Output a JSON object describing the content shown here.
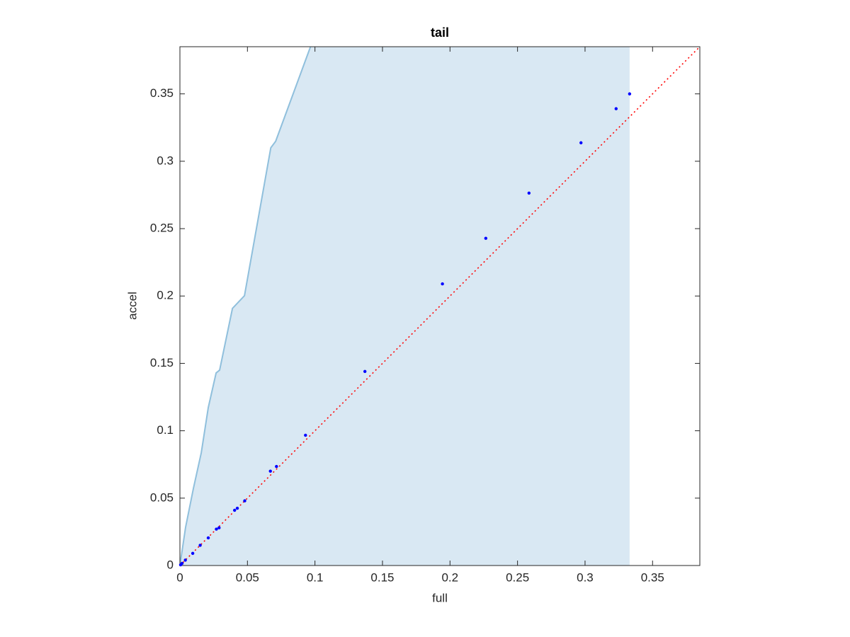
{
  "chart_data": {
    "type": "scatter",
    "title": "tail",
    "x_label": "full",
    "y_label": "accel",
    "xlim": [
      0,
      0.385
    ],
    "ylim": [
      0,
      0.385
    ],
    "xticks": [
      0,
      0.05,
      0.1,
      0.15,
      0.2,
      0.25,
      0.3,
      0.35
    ],
    "yticks": [
      0,
      0.05,
      0.1,
      0.15,
      0.2,
      0.25,
      0.3,
      0.35
    ],
    "grid": false,
    "box": true,
    "series": [
      {
        "color": "#0000ff",
        "x": [
          0.0005,
          0.0016,
          0.004,
          0.0095,
          0.015,
          0.021,
          0.027,
          0.029,
          0.0405,
          0.0425,
          0.048,
          0.067,
          0.0715,
          0.093,
          0.137,
          0.1944,
          0.2265,
          0.2585,
          0.297,
          0.323,
          0.333
        ],
        "values": [
          0.0005,
          0.0016,
          0.004,
          0.009,
          0.015,
          0.0205,
          0.027,
          0.028,
          0.041,
          0.0425,
          0.048,
          0.07,
          0.0735,
          0.0967,
          0.144,
          0.209,
          0.2428,
          0.2764,
          0.3137,
          0.339,
          0.35
        ]
      }
    ],
    "region": {
      "fill": "#d9e8f3",
      "edge_color": "#8fbfdc",
      "x": [
        0,
        0.0042,
        0.01,
        0.0158,
        0.021,
        0.0268,
        0.0294,
        0.0389,
        0.0478,
        0.0673,
        0.0709,
        0.0967
      ],
      "y": [
        0,
        0.0284,
        0.0573,
        0.0836,
        0.1172,
        0.1429,
        0.145,
        0.1908,
        0.2002,
        0.31,
        0.3148,
        0.385
      ],
      "right_x": 0.333
    },
    "reference": {
      "color": "#ff0000",
      "x": [
        0,
        0.385
      ],
      "y": [
        0,
        0.385
      ]
    }
  }
}
